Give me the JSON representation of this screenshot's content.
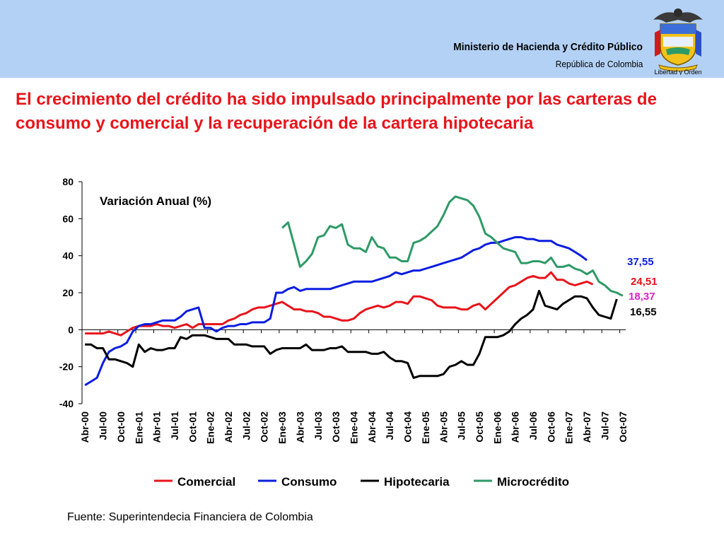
{
  "header": {
    "ministry": "Ministerio de Hacienda y Crédito Público",
    "republic": "República de Colombia",
    "logo_motto": "Libertad y Orden"
  },
  "title": "El crecimiento del crédito ha sido impulsado principalmente por las carteras de consumo y comercial y la recuperación de la cartera hipotecaria",
  "source": "Fuente: Superintendecia Financiera de Colombia",
  "chart_data": {
    "type": "line",
    "title": "Variación Anual (%)",
    "xlabel": "",
    "ylabel": "",
    "ylim": [
      -40,
      80
    ],
    "yticks": [
      -40,
      -20,
      0,
      20,
      40,
      60,
      80
    ],
    "grid": false,
    "legend_position": "bottom",
    "x_tick_labels": [
      "Abr-00",
      "Jul-00",
      "Oct-00",
      "Ene-01",
      "Abr-01",
      "Jul-01",
      "Oct-01",
      "Ene-02",
      "Abr-02",
      "Jul-02",
      "Oct-02",
      "Ene-03",
      "Abr-03",
      "Jul-03",
      "Oct-03",
      "Ene-04",
      "Abr-04",
      "Jul-04",
      "Oct-04",
      "Ene-05",
      "Abr-05",
      "Jul-05",
      "Oct-05",
      "Ene-06",
      "Abr-06",
      "Jul-06",
      "Oct-06",
      "Ene-07",
      "Abr-07",
      "Jul-07",
      "Oct-07"
    ],
    "series": [
      {
        "name": "Comercial",
        "color": "#e8141b",
        "end_label": "24,51",
        "values": [
          -2,
          -2,
          -2,
          -2,
          -1,
          -2,
          -3,
          -1,
          1,
          2,
          2,
          2,
          3,
          2,
          2,
          1,
          2,
          3,
          1,
          3,
          3,
          3,
          3,
          3,
          5,
          6,
          8,
          9,
          11,
          12,
          12,
          13,
          14,
          15,
          13,
          11,
          11,
          10,
          10,
          9,
          7,
          7,
          6,
          5,
          5,
          6,
          9,
          11,
          12,
          13,
          12,
          13,
          15,
          15,
          14,
          18,
          18,
          17,
          16,
          13,
          12,
          12,
          12,
          11,
          11,
          13,
          14,
          11,
          14,
          17,
          20,
          23,
          24,
          26,
          28,
          29,
          28,
          28,
          31,
          27,
          27,
          25,
          24,
          25,
          26,
          24.51
        ],
        "start_month": 0
      },
      {
        "name": "Consumo",
        "color": "#0a1de0",
        "end_label": "37,55",
        "values": [
          -30,
          -28,
          -26,
          -18,
          -12,
          -10,
          -9,
          -7,
          -1,
          2,
          3,
          3,
          4,
          5,
          5,
          5,
          7,
          10,
          11,
          12,
          1,
          1,
          -1,
          1,
          2,
          2,
          3,
          3,
          4,
          4,
          4,
          6,
          20,
          20,
          22,
          23,
          21,
          22,
          22,
          22,
          22,
          22,
          23,
          24,
          25,
          26,
          26,
          26,
          26,
          27,
          28,
          29,
          31,
          30,
          31,
          32,
          32,
          33,
          34,
          35,
          36,
          37,
          38,
          39,
          41,
          43,
          44,
          46,
          47,
          47,
          48,
          49,
          50,
          50,
          49,
          49,
          48,
          48,
          48,
          46,
          45,
          44,
          42,
          40,
          37.55
        ],
        "start_month": 0
      },
      {
        "name": "Hipotecaria",
        "color": "#000000",
        "end_label": "16,55",
        "values": [
          -8,
          -8,
          -10,
          -10,
          -16,
          -16,
          -17,
          -18,
          -20,
          -8,
          -12,
          -10,
          -11,
          -11,
          -10,
          -10,
          -4,
          -5,
          -3,
          -3,
          -3,
          -4,
          -5,
          -5,
          -5,
          -8,
          -8,
          -8,
          -9,
          -9,
          -9,
          -13,
          -11,
          -10,
          -10,
          -10,
          -10,
          -8,
          -11,
          -11,
          -11,
          -10,
          -10,
          -9,
          -12,
          -12,
          -12,
          -12,
          -13,
          -13,
          -12,
          -15,
          -17,
          -17,
          -18,
          -26,
          -25,
          -25,
          -25,
          -25,
          -24,
          -20,
          -19,
          -17,
          -19,
          -19,
          -13,
          -4,
          -4,
          -4,
          -3,
          -1,
          3,
          6,
          8,
          11,
          21,
          13,
          12,
          11,
          14,
          16,
          18,
          18,
          17,
          12,
          8,
          7,
          6,
          16.55
        ],
        "start_month": 0
      },
      {
        "name": "Microcrédito",
        "color": "#2e9a66",
        "end_label": "18,37",
        "end_label_color": "#e11fc8",
        "values": [
          55,
          58,
          46,
          34,
          37,
          41,
          50,
          51,
          56,
          55,
          57,
          46,
          44,
          44,
          42,
          50,
          45,
          44,
          39,
          39,
          37,
          37,
          47,
          48,
          50,
          53,
          56,
          62,
          69,
          72,
          71,
          70,
          67,
          61,
          52,
          50,
          47,
          44,
          43,
          42,
          36,
          36,
          37,
          37,
          36,
          39,
          34,
          34,
          35,
          33,
          32,
          30,
          32,
          26,
          24,
          21,
          20,
          18.37
        ],
        "start_month": 33
      }
    ]
  }
}
